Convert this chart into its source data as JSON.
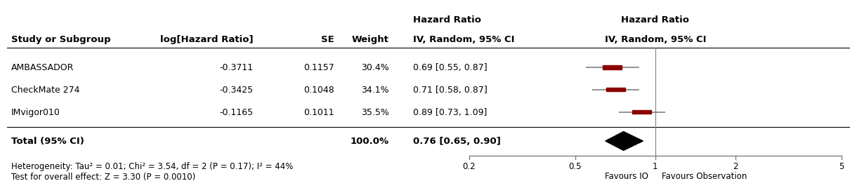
{
  "studies": [
    "AMBASSADOR",
    "CheckMate 274",
    "IMvigor010"
  ],
  "log_hr": [
    -0.3711,
    -0.3425,
    -0.1165
  ],
  "se": [
    0.1157,
    0.1048,
    0.1011
  ],
  "weight": [
    "30.4%",
    "34.1%",
    "35.5%"
  ],
  "hr": [
    0.69,
    0.71,
    0.89
  ],
  "ci_low": [
    0.55,
    0.58,
    0.73
  ],
  "ci_high": [
    0.87,
    0.87,
    1.09
  ],
  "hr_label": [
    "0.69 [0.55, 0.87]",
    "0.71 [0.58, 0.87]",
    "0.89 [0.73, 1.09]"
  ],
  "total_weight": "100.0%",
  "total_hr": 0.76,
  "total_ci_low": 0.65,
  "total_ci_high": 0.9,
  "total_hr_label": "0.76 [0.65, 0.90]",
  "heterogeneity_text": "Heterogeneity: Tau² = 0.01; Chi² = 3.54, df = 2 (P = 0.17); I² = 44%",
  "test_text": "Test for overall effect: Z = 3.30 (P = 0.0010)",
  "xmin": 0.2,
  "xmax": 5.0,
  "xticks": [
    0.2,
    0.5,
    1.0,
    2.0,
    5.0
  ],
  "xtick_labels": [
    "0.2",
    "0.5",
    "1",
    "2",
    "5"
  ],
  "xlabel_left": "Favours IO",
  "xlabel_right": "Favours Observation",
  "square_color": "#8B0000",
  "diamond_color": "#000000",
  "line_color": "#808080",
  "axis_color": "#808080",
  "bg_color": "#ffffff",
  "text_color": "#000000"
}
